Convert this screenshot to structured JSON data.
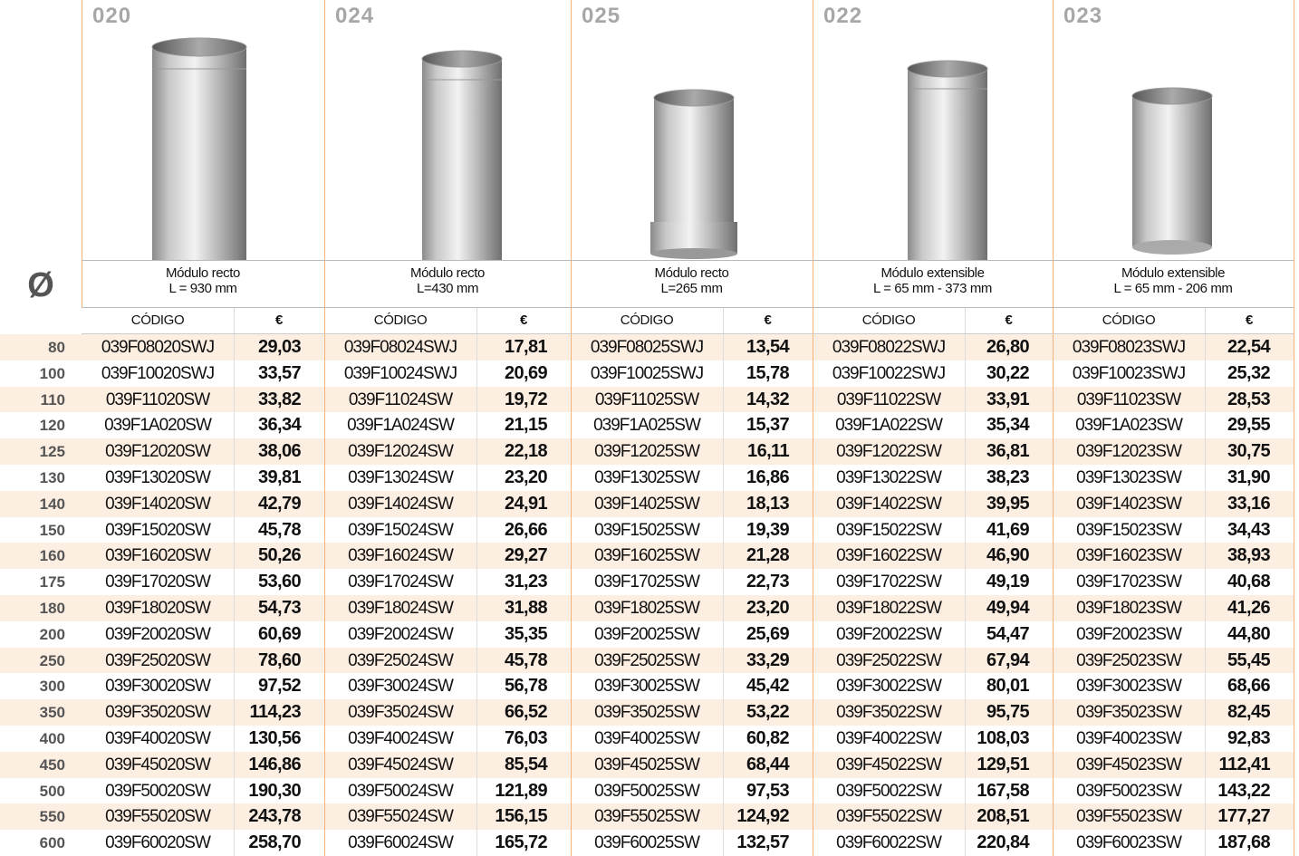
{
  "diameter_symbol": "Ø",
  "diameters": [
    80,
    100,
    110,
    120,
    125,
    130,
    140,
    150,
    160,
    175,
    180,
    200,
    250,
    300,
    350,
    400,
    450,
    500,
    550,
    600
  ],
  "products": [
    {
      "code": "020",
      "name": "Módulo recto",
      "length": "L = 930 mm",
      "code_header": "CÓDIGO",
      "price_header": "€",
      "rows": [
        {
          "code": "039F08020SWJ",
          "price": "29,03"
        },
        {
          "code": "039F10020SWJ",
          "price": "33,57"
        },
        {
          "code": "039F11020SW",
          "price": "33,82"
        },
        {
          "code": "039F1A020SW",
          "price": "36,34"
        },
        {
          "code": "039F12020SW",
          "price": "38,06"
        },
        {
          "code": "039F13020SW",
          "price": "39,81"
        },
        {
          "code": "039F14020SW",
          "price": "42,79"
        },
        {
          "code": "039F15020SW",
          "price": "45,78"
        },
        {
          "code": "039F16020SW",
          "price": "50,26"
        },
        {
          "code": "039F17020SW",
          "price": "53,60"
        },
        {
          "code": "039F18020SW",
          "price": "54,73"
        },
        {
          "code": "039F20020SW",
          "price": "60,69"
        },
        {
          "code": "039F25020SW",
          "price": "78,60"
        },
        {
          "code": "039F30020SW",
          "price": "97,52"
        },
        {
          "code": "039F35020SW",
          "price": "114,23"
        },
        {
          "code": "039F40020SW",
          "price": "130,56"
        },
        {
          "code": "039F45020SW",
          "price": "146,86"
        },
        {
          "code": "039F50020SW",
          "price": "190,30"
        },
        {
          "code": "039F55020SW",
          "price": "243,78"
        },
        {
          "code": "039F60020SW",
          "price": "258,70"
        }
      ]
    },
    {
      "code": "024",
      "name": "Módulo recto",
      "length": "L=430 mm",
      "code_header": "CÓDIGO",
      "price_header": "€",
      "rows": [
        {
          "code": "039F08024SWJ",
          "price": "17,81"
        },
        {
          "code": "039F10024SWJ",
          "price": "20,69"
        },
        {
          "code": "039F11024SW",
          "price": "19,72"
        },
        {
          "code": "039F1A024SW",
          "price": "21,15"
        },
        {
          "code": "039F12024SW",
          "price": "22,18"
        },
        {
          "code": "039F13024SW",
          "price": "23,20"
        },
        {
          "code": "039F14024SW",
          "price": "24,91"
        },
        {
          "code": "039F15024SW",
          "price": "26,66"
        },
        {
          "code": "039F16024SW",
          "price": "29,27"
        },
        {
          "code": "039F17024SW",
          "price": "31,23"
        },
        {
          "code": "039F18024SW",
          "price": "31,88"
        },
        {
          "code": "039F20024SW",
          "price": "35,35"
        },
        {
          "code": "039F25024SW",
          "price": "45,78"
        },
        {
          "code": "039F30024SW",
          "price": "56,78"
        },
        {
          "code": "039F35024SW",
          "price": "66,52"
        },
        {
          "code": "039F40024SW",
          "price": "76,03"
        },
        {
          "code": "039F45024SW",
          "price": "85,54"
        },
        {
          "code": "039F50024SW",
          "price": "121,89"
        },
        {
          "code": "039F55024SW",
          "price": "156,15"
        },
        {
          "code": "039F60024SW",
          "price": "165,72"
        }
      ]
    },
    {
      "code": "025",
      "name": "Módulo recto",
      "length": "L=265 mm",
      "code_header": "CÓDIGO",
      "price_header": "€",
      "rows": [
        {
          "code": "039F08025SWJ",
          "price": "13,54"
        },
        {
          "code": "039F10025SWJ",
          "price": "15,78"
        },
        {
          "code": "039F11025SW",
          "price": "14,32"
        },
        {
          "code": "039F1A025SW",
          "price": "15,37"
        },
        {
          "code": "039F12025SW",
          "price": "16,11"
        },
        {
          "code": "039F13025SW",
          "price": "16,86"
        },
        {
          "code": "039F14025SW",
          "price": "18,13"
        },
        {
          "code": "039F15025SW",
          "price": "19,39"
        },
        {
          "code": "039F16025SW",
          "price": "21,28"
        },
        {
          "code": "039F17025SW",
          "price": "22,73"
        },
        {
          "code": "039F18025SW",
          "price": "23,20"
        },
        {
          "code": "039F20025SW",
          "price": "25,69"
        },
        {
          "code": "039F25025SW",
          "price": "33,29"
        },
        {
          "code": "039F30025SW",
          "price": "45,42"
        },
        {
          "code": "039F35025SW",
          "price": "53,22"
        },
        {
          "code": "039F40025SW",
          "price": "60,82"
        },
        {
          "code": "039F45025SW",
          "price": "68,44"
        },
        {
          "code": "039F50025SW",
          "price": "97,53"
        },
        {
          "code": "039F55025SW",
          "price": "124,92"
        },
        {
          "code": "039F60025SW",
          "price": "132,57"
        }
      ]
    },
    {
      "code": "022",
      "name": "Módulo extensible",
      "length": "L = 65 mm - 373 mm",
      "code_header": "CÓDIGO",
      "price_header": "€",
      "rows": [
        {
          "code": "039F08022SWJ",
          "price": "26,80"
        },
        {
          "code": "039F10022SWJ",
          "price": "30,22"
        },
        {
          "code": "039F11022SW",
          "price": "33,91"
        },
        {
          "code": "039F1A022SW",
          "price": "35,34"
        },
        {
          "code": "039F12022SW",
          "price": "36,81"
        },
        {
          "code": "039F13022SW",
          "price": "38,23"
        },
        {
          "code": "039F14022SW",
          "price": "39,95"
        },
        {
          "code": "039F15022SW",
          "price": "41,69"
        },
        {
          "code": "039F16022SW",
          "price": "46,90"
        },
        {
          "code": "039F17022SW",
          "price": "49,19"
        },
        {
          "code": "039F18022SW",
          "price": "49,94"
        },
        {
          "code": "039F20022SW",
          "price": "54,47"
        },
        {
          "code": "039F25022SW",
          "price": "67,94"
        },
        {
          "code": "039F30022SW",
          "price": "80,01"
        },
        {
          "code": "039F35022SW",
          "price": "95,75"
        },
        {
          "code": "039F40022SW",
          "price": "108,03"
        },
        {
          "code": "039F45022SW",
          "price": "129,51"
        },
        {
          "code": "039F50022SW",
          "price": "167,58"
        },
        {
          "code": "039F55022SW",
          "price": "208,51"
        },
        {
          "code": "039F60022SW",
          "price": "220,84"
        }
      ]
    },
    {
      "code": "023",
      "name": "Módulo extensible",
      "length": "L = 65 mm - 206 mm",
      "code_header": "CÓDIGO",
      "price_header": "€",
      "rows": [
        {
          "code": "039F08023SWJ",
          "price": "22,54"
        },
        {
          "code": "039F10023SWJ",
          "price": "25,32"
        },
        {
          "code": "039F11023SW",
          "price": "28,53"
        },
        {
          "code": "039F1A023SW",
          "price": "29,55"
        },
        {
          "code": "039F12023SW",
          "price": "30,75"
        },
        {
          "code": "039F13023SW",
          "price": "31,90"
        },
        {
          "code": "039F14023SW",
          "price": "33,16"
        },
        {
          "code": "039F15023SW",
          "price": "34,43"
        },
        {
          "code": "039F16023SW",
          "price": "38,93"
        },
        {
          "code": "039F17023SW",
          "price": "40,68"
        },
        {
          "code": "039F18023SW",
          "price": "41,26"
        },
        {
          "code": "039F20023SW",
          "price": "44,80"
        },
        {
          "code": "039F25023SW",
          "price": "55,45"
        },
        {
          "code": "039F30023SW",
          "price": "68,66"
        },
        {
          "code": "039F35023SW",
          "price": "82,45"
        },
        {
          "code": "039F40023SW",
          "price": "92,83"
        },
        {
          "code": "039F45023SW",
          "price": "112,41"
        },
        {
          "code": "039F50023SW",
          "price": "143,22"
        },
        {
          "code": "039F55023SW",
          "price": "177,27"
        },
        {
          "code": "039F60023SW",
          "price": "187,68"
        }
      ]
    }
  ]
}
